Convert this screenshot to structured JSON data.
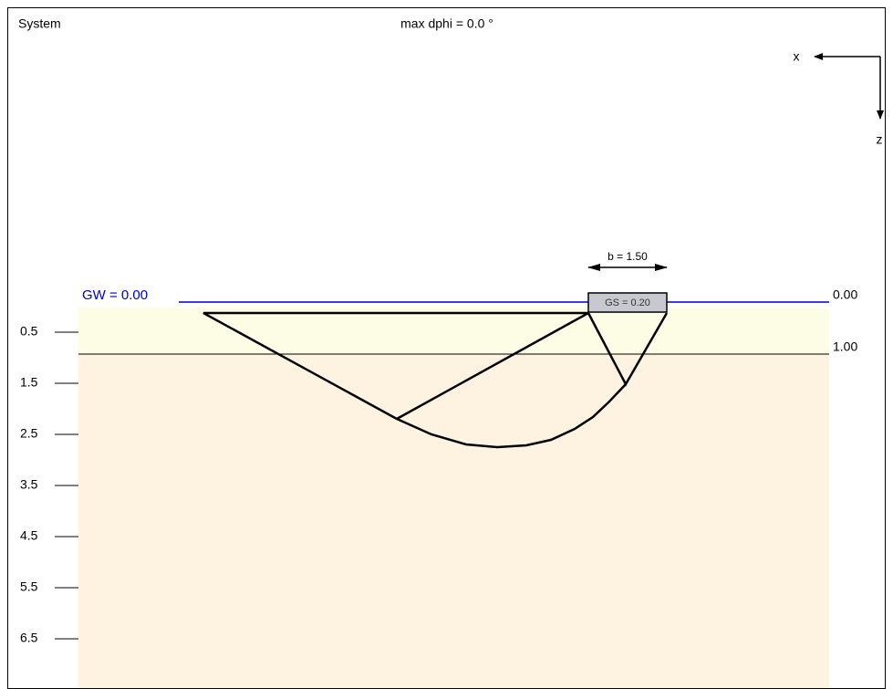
{
  "header": {
    "title": "System",
    "subtitle": "max dphi = 0.0 °"
  },
  "axes": {
    "x": "x",
    "z": "z"
  },
  "footing": {
    "width_label": "b = 1.50",
    "label": "GS = 0.20"
  },
  "groundwater": {
    "label": "GW = 0.00"
  },
  "layers": [
    "0.00",
    "1.00"
  ],
  "depth_labels": [
    "0.5",
    "1.5",
    "2.5",
    "3.5",
    "4.5",
    "5.5",
    "6.5"
  ]
}
